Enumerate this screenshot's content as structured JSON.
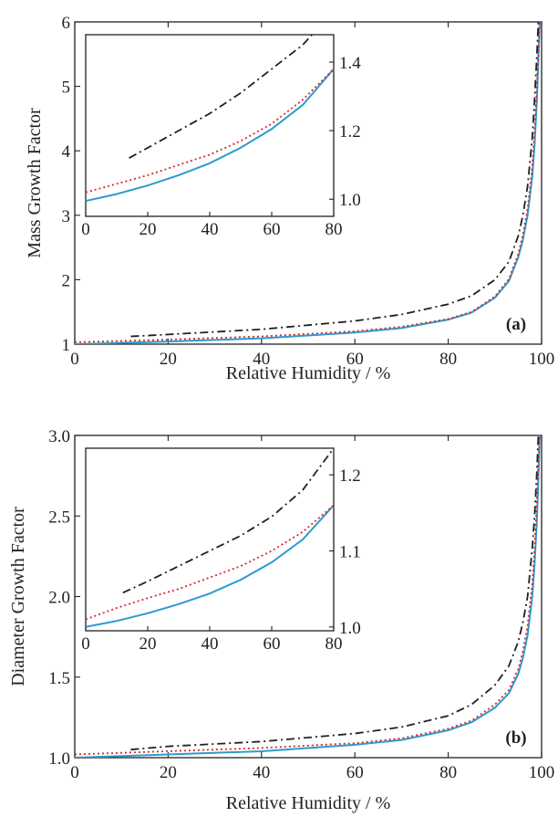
{
  "chart_data": [
    {
      "type": "line",
      "panel_label": "(a)",
      "xlabel": "Relative Humidity / %",
      "ylabel": "Mass Growth Factor",
      "xlim": [
        0,
        100
      ],
      "ylim": [
        1,
        6
      ],
      "x_ticks": [
        "0",
        "20",
        "40",
        "60",
        "80",
        "100"
      ],
      "y_ticks": [
        "1",
        "2",
        "3",
        "4",
        "5",
        "6"
      ],
      "grid": false,
      "series": [
        {
          "style": "solid",
          "color": "#2b9bcf",
          "x": [
            0,
            20,
            40,
            60,
            70,
            80,
            85,
            90,
            93,
            95,
            96,
            97,
            98,
            98.5,
            99,
            99.3,
            99.6
          ],
          "y": [
            1.0,
            1.04,
            1.09,
            1.18,
            1.25,
            1.38,
            1.49,
            1.72,
            1.98,
            2.35,
            2.62,
            3.0,
            3.6,
            4.1,
            4.8,
            5.4,
            6.0
          ]
        },
        {
          "style": "dotted",
          "color": "#d42a2a",
          "x": [
            0,
            20,
            40,
            60,
            70,
            80,
            85,
            90,
            93,
            95,
            96,
            97,
            98,
            98.5,
            99,
            99.3,
            99.6
          ],
          "y": [
            1.03,
            1.07,
            1.12,
            1.2,
            1.27,
            1.39,
            1.5,
            1.74,
            2.01,
            2.4,
            2.7,
            3.1,
            3.75,
            4.3,
            5.0,
            5.5,
            6.0
          ]
        },
        {
          "style": "dashdot",
          "color": "#231f20",
          "x": [
            12,
            20,
            40,
            60,
            70,
            80,
            85,
            90,
            93,
            95,
            96,
            97,
            98,
            98.5,
            99,
            99.3
          ],
          "y": [
            1.12,
            1.15,
            1.23,
            1.36,
            1.46,
            1.62,
            1.75,
            2.0,
            2.28,
            2.68,
            3.0,
            3.45,
            4.2,
            4.8,
            5.5,
            6.0
          ]
        }
      ],
      "inset": {
        "xlim": [
          0,
          80
        ],
        "ylim": [
          0.95,
          1.48
        ],
        "x_ticks": [
          "0",
          "20",
          "40",
          "60",
          "80"
        ],
        "y_ticks": [
          "1.0",
          "1.2",
          "1.4"
        ],
        "series": [
          {
            "style": "solid",
            "color": "#2b9bcf",
            "x": [
              0,
              10,
              20,
              30,
              40,
              50,
              60,
              70,
              80
            ],
            "y": [
              0.995,
              1.015,
              1.04,
              1.07,
              1.105,
              1.15,
              1.205,
              1.275,
              1.38
            ]
          },
          {
            "style": "dotted",
            "color": "#d42a2a",
            "x": [
              0,
              10,
              20,
              30,
              40,
              50,
              60,
              70,
              80
            ],
            "y": [
              1.02,
              1.045,
              1.07,
              1.1,
              1.13,
              1.17,
              1.22,
              1.29,
              1.38
            ]
          },
          {
            "style": "dashdot",
            "color": "#231f20",
            "x": [
              14,
              20,
              30,
              40,
              50,
              60,
              70,
              75
            ],
            "y": [
              1.12,
              1.15,
              1.2,
              1.25,
              1.31,
              1.38,
              1.45,
              1.5
            ]
          }
        ]
      }
    },
    {
      "type": "line",
      "panel_label": "(b)",
      "xlabel": "Relative Humidity / %",
      "ylabel": "Diameter Growth Factor",
      "xlim": [
        0,
        100
      ],
      "ylim": [
        1.0,
        3.0
      ],
      "x_ticks": [
        "0",
        "20",
        "40",
        "60",
        "80",
        "100"
      ],
      "y_ticks": [
        "1.0",
        "1.5",
        "2.0",
        "2.5",
        "3.0"
      ],
      "grid": false,
      "series": [
        {
          "style": "solid",
          "color": "#2b9bcf",
          "x": [
            0,
            20,
            40,
            60,
            70,
            80,
            85,
            90,
            93,
            95,
            96,
            97,
            98,
            98.5,
            99,
            99.3,
            99.6
          ],
          "y": [
            1.0,
            1.02,
            1.04,
            1.08,
            1.11,
            1.17,
            1.22,
            1.31,
            1.4,
            1.52,
            1.62,
            1.76,
            2.0,
            2.2,
            2.48,
            2.72,
            3.0
          ]
        },
        {
          "style": "dotted",
          "color": "#d42a2a",
          "x": [
            0,
            20,
            40,
            60,
            70,
            80,
            85,
            90,
            93,
            95,
            96,
            97,
            98,
            98.5,
            99,
            99.3,
            99.6
          ],
          "y": [
            1.02,
            1.04,
            1.06,
            1.09,
            1.12,
            1.18,
            1.23,
            1.33,
            1.42,
            1.55,
            1.66,
            1.82,
            2.08,
            2.3,
            2.6,
            2.82,
            3.0
          ]
        },
        {
          "style": "dashdot",
          "color": "#231f20",
          "x": [
            12,
            20,
            40,
            60,
            70,
            80,
            85,
            90,
            93,
            95,
            96,
            97,
            98,
            98.5,
            99,
            99.3
          ],
          "y": [
            1.05,
            1.07,
            1.1,
            1.15,
            1.19,
            1.26,
            1.33,
            1.45,
            1.57,
            1.72,
            1.84,
            2.0,
            2.3,
            2.5,
            2.78,
            3.0
          ]
        }
      ],
      "inset": {
        "xlim": [
          0,
          80
        ],
        "ylim": [
          0.995,
          1.235
        ],
        "x_ticks": [
          "0",
          "20",
          "40",
          "60",
          "80"
        ],
        "y_ticks": [
          "1.0",
          "1.1",
          "1.2"
        ],
        "series": [
          {
            "style": "solid",
            "color": "#2b9bcf",
            "x": [
              0,
              10,
              20,
              30,
              40,
              50,
              60,
              70,
              80
            ],
            "y": [
              1.0,
              1.008,
              1.018,
              1.03,
              1.044,
              1.062,
              1.085,
              1.115,
              1.16
            ]
          },
          {
            "style": "dotted",
            "color": "#d42a2a",
            "x": [
              0,
              10,
              20,
              30,
              40,
              50,
              60,
              70,
              80
            ],
            "y": [
              1.01,
              1.025,
              1.038,
              1.05,
              1.065,
              1.08,
              1.1,
              1.125,
              1.16
            ]
          },
          {
            "style": "dashdot",
            "color": "#231f20",
            "x": [
              12,
              20,
              30,
              40,
              50,
              60,
              70,
              80
            ],
            "y": [
              1.045,
              1.06,
              1.08,
              1.1,
              1.12,
              1.145,
              1.18,
              1.235
            ]
          }
        ]
      }
    }
  ]
}
